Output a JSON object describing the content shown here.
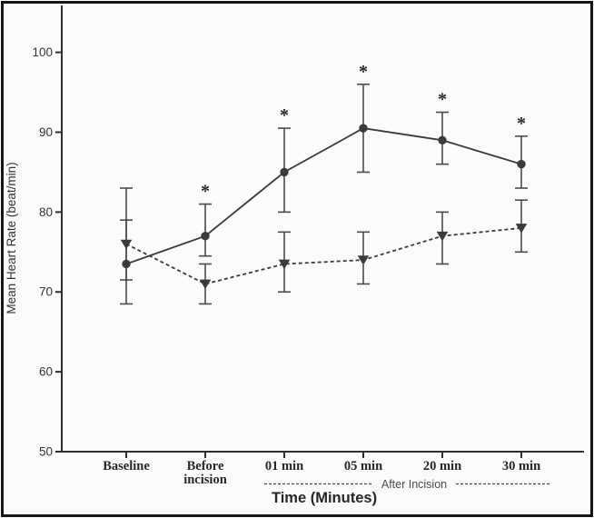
{
  "chart_data": {
    "type": "line",
    "title": "",
    "xlabel": "Time (Minutes)",
    "ylabel": "Mean Heart Rate (beat/min)",
    "categories": [
      "Baseline",
      "Before\nincision",
      "01 min",
      "05 min",
      "20 min",
      "30 min"
    ],
    "y_ticks": [
      50,
      60,
      70,
      80,
      90,
      100
    ],
    "ylim": [
      50,
      106
    ],
    "grid": "off",
    "legend": "none",
    "series": [
      {
        "name": "solid-circle-series",
        "marker": "filled-circle",
        "line_style": "solid",
        "values": [
          73.5,
          77,
          85,
          90.5,
          89,
          86
        ],
        "err_low": [
          68.5,
          74.5,
          80,
          85,
          86,
          83
        ],
        "err_high": [
          79,
          81,
          90.5,
          96,
          92.5,
          89.5
        ]
      },
      {
        "name": "dashed-triangle-series",
        "marker": "filled-triangle-down",
        "line_style": "dashed",
        "values": [
          76,
          71,
          73.5,
          74,
          77,
          78
        ],
        "err_low": [
          71.5,
          68.5,
          70,
          71,
          73.5,
          75
        ],
        "err_high": [
          83,
          73.5,
          77.5,
          77.5,
          80,
          81.5
        ]
      }
    ],
    "significance": {
      "marker": "*",
      "applies_to": "solid-circle-series",
      "flags": [
        false,
        true,
        true,
        true,
        true,
        true
      ]
    },
    "annotation": {
      "text": "After Incision",
      "style": "dashed-rule-through"
    }
  },
  "colors": {
    "background": "#fbfbfb",
    "frame_border": "#161616",
    "axis": "#2e2e2e",
    "line": "#3a3a3a",
    "error_bar": "#4a4a4a",
    "text": "#262626",
    "tick_text": "#333333",
    "annotation_text": "#4a4a4a"
  }
}
